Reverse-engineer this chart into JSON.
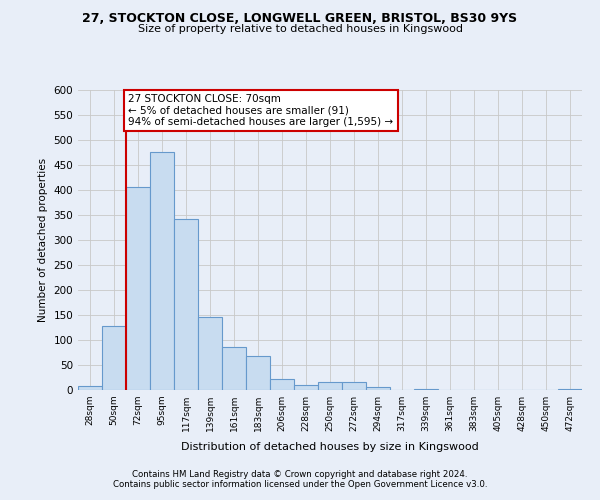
{
  "title1": "27, STOCKTON CLOSE, LONGWELL GREEN, BRISTOL, BS30 9YS",
  "title2": "Size of property relative to detached houses in Kingswood",
  "xlabel": "Distribution of detached houses by size in Kingswood",
  "ylabel": "Number of detached properties",
  "bin_labels": [
    "28sqm",
    "50sqm",
    "72sqm",
    "95sqm",
    "117sqm",
    "139sqm",
    "161sqm",
    "183sqm",
    "206sqm",
    "228sqm",
    "250sqm",
    "272sqm",
    "294sqm",
    "317sqm",
    "339sqm",
    "361sqm",
    "383sqm",
    "405sqm",
    "428sqm",
    "450sqm",
    "472sqm"
  ],
  "bar_heights": [
    8,
    128,
    406,
    476,
    342,
    146,
    87,
    68,
    22,
    11,
    16,
    16,
    6,
    1,
    2,
    1,
    0,
    0,
    0,
    0,
    2
  ],
  "bar_color": "#c8dcf0",
  "bar_edge_color": "#6699cc",
  "vline_x": 2,
  "vline_color": "#cc0000",
  "annotation_line1": "27 STOCKTON CLOSE: 70sqm",
  "annotation_line2": "← 5% of detached houses are smaller (91)",
  "annotation_line3": "94% of semi-detached houses are larger (1,595) →",
  "annotation_box_color": "#ffffff",
  "annotation_border_color": "#cc0000",
  "ylim": [
    0,
    600
  ],
  "yticks": [
    0,
    50,
    100,
    150,
    200,
    250,
    300,
    350,
    400,
    450,
    500,
    550,
    600
  ],
  "footnote1": "Contains HM Land Registry data © Crown copyright and database right 2024.",
  "footnote2": "Contains public sector information licensed under the Open Government Licence v3.0.",
  "bg_color": "#e8eef8"
}
